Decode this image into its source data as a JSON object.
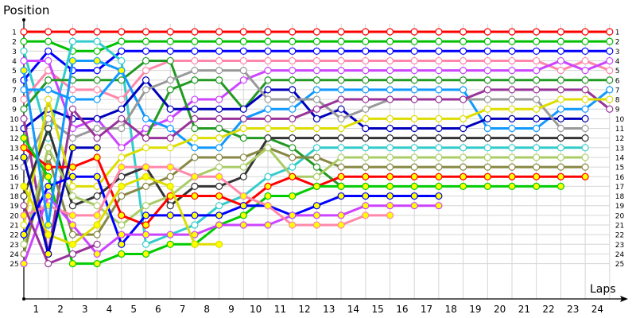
{
  "chart_data": {
    "type": "line",
    "subtype": "lap-position chart",
    "title": "",
    "ylabel": "Position",
    "xlabel": "Laps",
    "x_ticks": [
      "1",
      "2",
      "3",
      "4",
      "5",
      "6",
      "7",
      "8",
      "9",
      "10",
      "11",
      "12",
      "13",
      "14",
      "15",
      "16",
      "17",
      "18",
      "19",
      "20",
      "21",
      "22",
      "23",
      "24"
    ],
    "y_ticks": [
      "1",
      "2",
      "3",
      "4",
      "5",
      "6",
      "7",
      "8",
      "9",
      "10",
      "11",
      "12",
      "13",
      "14",
      "15",
      "16",
      "17",
      "18",
      "19",
      "20",
      "21",
      "22",
      "23",
      "24",
      "25"
    ],
    "ylim": [
      1,
      25
    ],
    "grid": true,
    "legend": "none",
    "note": "Each series = positions at successive lap markers (column 0 = start grid, column k = end of lap k). null = retired.",
    "series": [
      {
        "name": "red",
        "color": "#ff0000",
        "fill": "#ffffff",
        "values": [
          1,
          1,
          1,
          1,
          1,
          1,
          1,
          1,
          1,
          1,
          1,
          1,
          1,
          1,
          1,
          1,
          1,
          1,
          1,
          1,
          1,
          1,
          1,
          1,
          1
        ]
      },
      {
        "name": "green",
        "color": "#00c000",
        "fill": "#ffffff",
        "values": [
          2,
          2,
          3,
          3,
          2,
          2,
          2,
          2,
          2,
          2,
          2,
          2,
          2,
          2,
          2,
          2,
          2,
          2,
          2,
          2,
          2,
          2,
          2,
          2,
          2
        ]
      },
      {
        "name": "blue",
        "color": "#0000ff",
        "fill": "#ffffff",
        "values": [
          6,
          3,
          5,
          5,
          3,
          3,
          3,
          3,
          3,
          3,
          3,
          3,
          3,
          3,
          3,
          3,
          3,
          3,
          3,
          3,
          3,
          3,
          3,
          3,
          3
        ]
      },
      {
        "name": "cyan",
        "color": "#33cccc",
        "fill": "#ffffff",
        "values": [
          3,
          12,
          2,
          2,
          4,
          23,
          22,
          21,
          19,
          18,
          16,
          15,
          13,
          13,
          13,
          13,
          13,
          13,
          13,
          13,
          13,
          13,
          13,
          13,
          null
        ]
      },
      {
        "name": "pink",
        "color": "#ff88aa",
        "fill": "#ffffff",
        "values": [
          8,
          5,
          7,
          7,
          8,
          5,
          4,
          4,
          4,
          4,
          4,
          4,
          4,
          4,
          4,
          4,
          4,
          4,
          4,
          4,
          4,
          4,
          5,
          4,
          5
        ]
      },
      {
        "name": "violet",
        "color": "#cc44ff",
        "fill": "#ffffff",
        "values": [
          4,
          4,
          11,
          10,
          13,
          11,
          10,
          8,
          8,
          6,
          5,
          5,
          5,
          5,
          5,
          5,
          5,
          5,
          5,
          5,
          5,
          5,
          4,
          5,
          4
        ]
      },
      {
        "name": "darkgreen",
        "color": "#229922",
        "fill": "#ffffff",
        "values": [
          9,
          6,
          6,
          6,
          6,
          4,
          4,
          11,
          11,
          12,
          12,
          13,
          15,
          17,
          null,
          null,
          null,
          null,
          null,
          null,
          null,
          null,
          null,
          null,
          null
        ]
      },
      {
        "name": "darkgreen2",
        "color": "#229922",
        "fill": "#ffffff",
        "values": [
          null,
          null,
          null,
          null,
          null,
          12,
          7,
          6,
          6,
          9,
          6,
          6,
          6,
          6,
          6,
          6,
          6,
          6,
          6,
          6,
          6,
          6,
          6,
          6,
          6
        ]
      },
      {
        "name": "skyblue",
        "color": "#1199ff",
        "fill": "#ffffff",
        "values": [
          7,
          7,
          8,
          8,
          5,
          10,
          11,
          13,
          13,
          10,
          9,
          9,
          7,
          7,
          7,
          7,
          7,
          7,
          7,
          11,
          11,
          11,
          9,
          9,
          7
        ]
      },
      {
        "name": "navy",
        "color": "#0000bb",
        "fill": "#ffffff",
        "values": [
          11,
          9,
          10,
          10,
          9,
          6,
          9,
          9,
          9,
          9,
          7,
          7,
          10,
          9,
          11,
          11,
          11,
          11,
          11,
          10,
          10,
          10,
          10,
          10,
          null
        ]
      },
      {
        "name": "gray",
        "color": "#999999",
        "fill": "#ffffff",
        "values": [
          15,
          10,
          12,
          11,
          11,
          7,
          6,
          5,
          5,
          5,
          8,
          8,
          8,
          10,
          9,
          8,
          8,
          8,
          8,
          8,
          8,
          8,
          11,
          11,
          null
        ]
      },
      {
        "name": "purple",
        "color": "#993399",
        "fill": "#ffffff",
        "values": [
          10,
          24,
          9,
          12,
          10,
          12,
          12,
          10,
          10,
          10,
          10,
          10,
          9,
          8,
          8,
          8,
          8,
          8,
          8,
          7,
          7,
          7,
          7,
          7,
          9
        ]
      },
      {
        "name": "yellow",
        "color": "#dddd00",
        "fill": "#ffffff",
        "values": [
          21,
          8,
          17,
          17,
          14,
          13,
          13,
          12,
          12,
          11,
          11,
          11,
          11,
          11,
          10,
          10,
          10,
          10,
          10,
          9,
          9,
          9,
          8,
          8,
          8
        ]
      },
      {
        "name": "black",
        "color": "#333333",
        "fill": "#ffffff",
        "values": [
          18,
          11,
          19,
          18,
          16,
          15,
          19,
          17,
          17,
          16,
          12,
          12,
          12,
          12,
          12,
          12,
          12,
          12,
          12,
          12,
          12,
          12,
          12,
          12,
          null
        ]
      },
      {
        "name": "olive",
        "color": "#888844",
        "fill": "#ffffff",
        "values": [
          24,
          14,
          22,
          22,
          18,
          17,
          16,
          14,
          14,
          14,
          13,
          14,
          14,
          15,
          15,
          15,
          15,
          15,
          15,
          15,
          15,
          15,
          15,
          15,
          null
        ]
      },
      {
        "name": "lightgreen",
        "color": "#aacc66",
        "fill": "#ffffff",
        "values": [
          23,
          13,
          18,
          19,
          21,
          19,
          18,
          16,
          15,
          15,
          13,
          16,
          16,
          14,
          14,
          14,
          14,
          14,
          14,
          14,
          14,
          14,
          14,
          14,
          null
        ]
      },
      {
        "name": "red-y",
        "color": "#ff0000",
        "fill": "#ffff00",
        "values": [
          13,
          15,
          15,
          14,
          20,
          21,
          18,
          18,
          18,
          19,
          17,
          16,
          17,
          16,
          16,
          16,
          16,
          16,
          16,
          16,
          16,
          16,
          16,
          16,
          null
        ]
      },
      {
        "name": "green-y",
        "color": "#00cc00",
        "fill": "#ffff00",
        "values": [
          12,
          16,
          25,
          25,
          24,
          24,
          23,
          23,
          21,
          20,
          18,
          18,
          17,
          17,
          17,
          17,
          17,
          17,
          17,
          17,
          17,
          17,
          17,
          null,
          null
        ]
      },
      {
        "name": "blue-y",
        "color": "#0000ff",
        "fill": "#ffff00",
        "values": [
          22,
          17,
          16,
          16,
          23,
          20,
          20,
          20,
          20,
          19,
          19,
          20,
          19,
          18,
          18,
          18,
          18,
          18,
          null,
          null,
          null,
          null,
          null,
          null,
          null
        ]
      },
      {
        "name": "violet-y",
        "color": "#cc44ff",
        "fill": "#ffff00",
        "values": [
          25,
          18,
          21,
          24,
          22,
          22,
          22,
          22,
          21,
          21,
          21,
          20,
          20,
          20,
          19,
          19,
          19,
          19,
          null,
          null,
          null,
          null,
          null,
          null,
          null
        ]
      },
      {
        "name": "pink-y",
        "color": "#ff88aa",
        "fill": "#ffff00",
        "values": [
          20,
          19,
          20,
          20,
          15,
          15,
          15,
          16,
          16,
          18,
          19,
          21,
          21,
          21,
          20,
          20,
          null,
          null,
          null,
          null,
          null,
          null,
          null,
          null,
          null
        ]
      },
      {
        "name": "yellow-y",
        "color": "#dddd00",
        "fill": "#ffff00",
        "values": [
          17,
          22,
          23,
          21,
          17,
          16,
          17,
          23,
          23,
          null,
          null,
          null,
          null,
          null,
          null,
          null,
          null,
          null,
          null,
          null,
          null,
          null,
          null,
          null,
          null
        ]
      },
      {
        "name": "navy-y",
        "color": "#0000bb",
        "fill": "#ffff00",
        "values": [
          14,
          24,
          13,
          13,
          null,
          null,
          null,
          null,
          null,
          null,
          null,
          null,
          null,
          null,
          null,
          null,
          null,
          null,
          null,
          null,
          null,
          null,
          null,
          null,
          null
        ]
      },
      {
        "name": "skyblue-y",
        "color": "#1199ff",
        "fill": "#ffff00",
        "values": [
          5,
          21,
          4,
          4,
          5,
          null,
          null,
          null,
          null,
          null,
          null,
          null,
          null,
          null,
          null,
          null,
          null,
          null,
          null,
          null,
          null,
          null,
          null,
          null,
          null
        ]
      },
      {
        "name": "purple-w",
        "color": "#993399",
        "fill": "#ffffff",
        "values": [
          19,
          25,
          24,
          23,
          null,
          null,
          null,
          null,
          null,
          null,
          null,
          null,
          null,
          null,
          null,
          null,
          null,
          null,
          null,
          null,
          null,
          null,
          null,
          null,
          null
        ]
      }
    ]
  },
  "labels": {
    "y_axis_title": "Position",
    "x_axis_title": "Laps"
  }
}
